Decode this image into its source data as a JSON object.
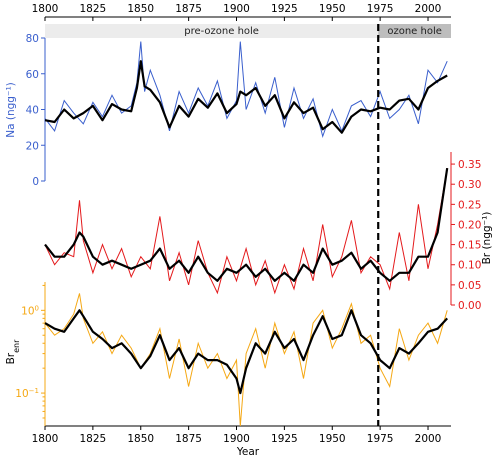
{
  "chart_data": {
    "type": "line",
    "xlabel": "Year",
    "xlim": [
      1800,
      2012
    ],
    "x_ticks": [
      "1800",
      "1825",
      "1850",
      "1875",
      "1900",
      "1925",
      "1950",
      "1975",
      "2000"
    ],
    "periods": {
      "pre": {
        "label": "pre-ozone hole",
        "range": [
          1800,
          1974
        ]
      },
      "post": {
        "label": "ozone hole",
        "range": [
          1974,
          2012
        ]
      },
      "divider_year": 1974
    },
    "panels": [
      {
        "id": "na",
        "ylabel": "Na (ngg⁻¹)",
        "axis_side": "left",
        "color": "#3a5fcd",
        "smooth_color": "#000000",
        "ylim": [
          0,
          80
        ],
        "y_ticks": [
          "0",
          "20",
          "40",
          "60",
          "80"
        ],
        "annual": {
          "x": [
            1800,
            1805,
            1810,
            1815,
            1820,
            1825,
            1830,
            1835,
            1840,
            1845,
            1848,
            1850,
            1852,
            1855,
            1860,
            1865,
            1870,
            1875,
            1880,
            1885,
            1890,
            1895,
            1900,
            1902,
            1905,
            1910,
            1915,
            1920,
            1925,
            1930,
            1935,
            1940,
            1945,
            1950,
            1955,
            1960,
            1965,
            1970,
            1975,
            1980,
            1985,
            1990,
            1995,
            2000,
            2005,
            2010
          ],
          "values": [
            35,
            28,
            45,
            38,
            32,
            44,
            36,
            48,
            38,
            42,
            55,
            78,
            50,
            62,
            48,
            28,
            50,
            38,
            52,
            42,
            56,
            35,
            45,
            78,
            40,
            55,
            38,
            58,
            30,
            52,
            35,
            46,
            25,
            40,
            28,
            42,
            45,
            36,
            50,
            35,
            40,
            48,
            32,
            62,
            55,
            67
          ]
        },
        "smoothed": {
          "x": [
            1800,
            1805,
            1810,
            1815,
            1820,
            1825,
            1830,
            1835,
            1840,
            1845,
            1848,
            1850,
            1852,
            1855,
            1860,
            1865,
            1870,
            1875,
            1880,
            1885,
            1890,
            1895,
            1900,
            1902,
            1905,
            1910,
            1915,
            1920,
            1925,
            1930,
            1935,
            1940,
            1945,
            1950,
            1955,
            1960,
            1965,
            1970,
            1975,
            1980,
            1985,
            1990,
            1995,
            2000,
            2005,
            2010
          ],
          "values": [
            34,
            33,
            40,
            35,
            38,
            42,
            34,
            43,
            40,
            39,
            52,
            67,
            53,
            51,
            44,
            30,
            42,
            36,
            46,
            41,
            49,
            38,
            43,
            50,
            48,
            52,
            42,
            48,
            35,
            44,
            38,
            41,
            29,
            33,
            27,
            36,
            40,
            39,
            41,
            40,
            45,
            46,
            40,
            52,
            56,
            59
          ]
        }
      },
      {
        "id": "br",
        "ylabel": "Br (ngg⁻¹)",
        "axis_side": "right",
        "color": "#e41a1c",
        "smooth_color": "#000000",
        "ylim": [
          0,
          0.38
        ],
        "y_ticks": [
          "0.00",
          "0.05",
          "0.10",
          "0.15",
          "0.20",
          "0.25",
          "0.30",
          "0.35"
        ],
        "annual": {
          "x": [
            1800,
            1805,
            1810,
            1815,
            1818,
            1820,
            1825,
            1830,
            1835,
            1840,
            1845,
            1850,
            1855,
            1860,
            1865,
            1870,
            1875,
            1880,
            1885,
            1890,
            1895,
            1900,
            1905,
            1910,
            1915,
            1920,
            1925,
            1930,
            1935,
            1940,
            1945,
            1950,
            1955,
            1960,
            1965,
            1970,
            1975,
            1980,
            1985,
            1990,
            1995,
            2000,
            2005,
            2010
          ],
          "values": [
            0.15,
            0.1,
            0.13,
            0.12,
            0.26,
            0.16,
            0.08,
            0.15,
            0.09,
            0.14,
            0.07,
            0.12,
            0.09,
            0.22,
            0.06,
            0.13,
            0.05,
            0.16,
            0.08,
            0.03,
            0.12,
            0.06,
            0.14,
            0.05,
            0.11,
            0.03,
            0.1,
            0.04,
            0.14,
            0.06,
            0.2,
            0.07,
            0.12,
            0.21,
            0.08,
            0.12,
            0.1,
            0.04,
            0.18,
            0.06,
            0.25,
            0.09,
            0.2,
            0.34
          ]
        },
        "smoothed": {
          "x": [
            1800,
            1805,
            1810,
            1815,
            1818,
            1820,
            1825,
            1830,
            1835,
            1840,
            1845,
            1850,
            1855,
            1860,
            1865,
            1870,
            1875,
            1880,
            1885,
            1890,
            1895,
            1900,
            1905,
            1910,
            1915,
            1920,
            1925,
            1930,
            1935,
            1940,
            1945,
            1950,
            1955,
            1960,
            1965,
            1970,
            1975,
            1980,
            1985,
            1990,
            1995,
            2000,
            2005,
            2010
          ],
          "values": [
            0.15,
            0.12,
            0.12,
            0.15,
            0.18,
            0.17,
            0.12,
            0.1,
            0.11,
            0.1,
            0.09,
            0.1,
            0.11,
            0.14,
            0.09,
            0.11,
            0.08,
            0.12,
            0.08,
            0.06,
            0.09,
            0.08,
            0.1,
            0.07,
            0.09,
            0.06,
            0.08,
            0.06,
            0.1,
            0.08,
            0.14,
            0.1,
            0.11,
            0.13,
            0.09,
            0.11,
            0.08,
            0.06,
            0.08,
            0.08,
            0.12,
            0.12,
            0.18,
            0.34
          ]
        }
      },
      {
        "id": "brenr",
        "ylabel": "Br",
        "ylabel_sub": "enr",
        "axis_side": "left",
        "scale": "log",
        "color": "#f5a814",
        "smooth_color": "#000000",
        "ylim": [
          0.04,
          2.2
        ],
        "y_ticks": [
          {
            "label": "10",
            "sup": "0",
            "value": 1
          },
          {
            "label": "10",
            "sup": "−1",
            "value": 0.1
          }
        ],
        "annual": {
          "x": [
            1800,
            1805,
            1810,
            1815,
            1818,
            1820,
            1825,
            1830,
            1835,
            1840,
            1845,
            1850,
            1855,
            1860,
            1865,
            1870,
            1875,
            1880,
            1885,
            1890,
            1895,
            1900,
            1902,
            1905,
            1910,
            1915,
            1920,
            1925,
            1930,
            1935,
            1940,
            1945,
            1950,
            1955,
            1960,
            1965,
            1970,
            1975,
            1980,
            1985,
            1990,
            1995,
            2000,
            2005,
            2010
          ],
          "values": [
            0.7,
            0.5,
            0.6,
            0.9,
            1.6,
            0.8,
            0.4,
            0.55,
            0.3,
            0.5,
            0.35,
            0.2,
            0.3,
            0.6,
            0.15,
            0.45,
            0.12,
            0.4,
            0.2,
            0.3,
            0.15,
            0.25,
            0.04,
            0.3,
            0.6,
            0.2,
            0.7,
            0.3,
            0.55,
            0.15,
            0.7,
            1.0,
            0.35,
            0.6,
            1.2,
            0.4,
            0.5,
            0.2,
            0.12,
            0.6,
            0.25,
            0.5,
            0.7,
            0.4,
            1.0
          ]
        },
        "smoothed": {
          "x": [
            1800,
            1805,
            1810,
            1815,
            1818,
            1820,
            1825,
            1830,
            1835,
            1840,
            1845,
            1850,
            1855,
            1860,
            1865,
            1870,
            1875,
            1880,
            1885,
            1890,
            1895,
            1900,
            1902,
            1905,
            1910,
            1915,
            1920,
            1925,
            1930,
            1935,
            1940,
            1945,
            1950,
            1955,
            1960,
            1965,
            1970,
            1975,
            1980,
            1985,
            1990,
            1995,
            2000,
            2005,
            2010
          ],
          "values": [
            0.7,
            0.6,
            0.55,
            0.8,
            1.0,
            0.85,
            0.55,
            0.45,
            0.35,
            0.4,
            0.3,
            0.2,
            0.28,
            0.5,
            0.25,
            0.35,
            0.2,
            0.3,
            0.25,
            0.25,
            0.22,
            0.15,
            0.1,
            0.2,
            0.4,
            0.3,
            0.55,
            0.35,
            0.45,
            0.25,
            0.5,
            0.85,
            0.45,
            0.5,
            1.0,
            0.5,
            0.4,
            0.25,
            0.2,
            0.35,
            0.3,
            0.4,
            0.55,
            0.6,
            0.8
          ]
        }
      }
    ]
  }
}
